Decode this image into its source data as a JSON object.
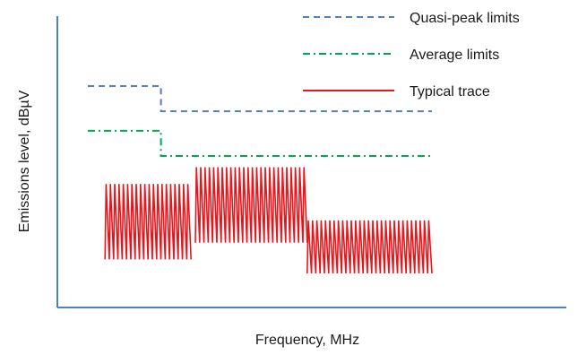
{
  "chart_data": {
    "type": "line",
    "title": "",
    "xlabel": "Frequency, MHz",
    "ylabel": "Emissions level, dBµV",
    "xlim": [
      0,
      100
    ],
    "ylim": [
      0,
      100
    ],
    "grid": false,
    "legend_position": "top-right",
    "colors": {
      "quasi_peak": "#4f81bd",
      "average": "#00a651",
      "trace": "#e8161b",
      "axis": "#4f81bd"
    },
    "series": [
      {
        "name": "Quasi-peak limits",
        "style": "dashed",
        "x": [
          0,
          17,
          17,
          80
        ],
        "y": [
          75,
          75,
          66,
          66
        ]
      },
      {
        "name": "Average limits",
        "style": "dash-dot",
        "x": [
          0,
          17,
          17,
          80
        ],
        "y": [
          59,
          59,
          50,
          50
        ]
      },
      {
        "name": "Typical trace",
        "style": "solid",
        "segments": [
          {
            "x_start": 4,
            "x_end": 24,
            "teeth": 20,
            "y_low": 13,
            "y_high": 40
          },
          {
            "x_start": 25,
            "x_end": 51,
            "teeth": 26,
            "y_low": 19,
            "y_high": 46
          },
          {
            "x_start": 51,
            "x_end": 80,
            "teeth": 29,
            "y_low": 8,
            "y_high": 27
          }
        ]
      }
    ]
  }
}
